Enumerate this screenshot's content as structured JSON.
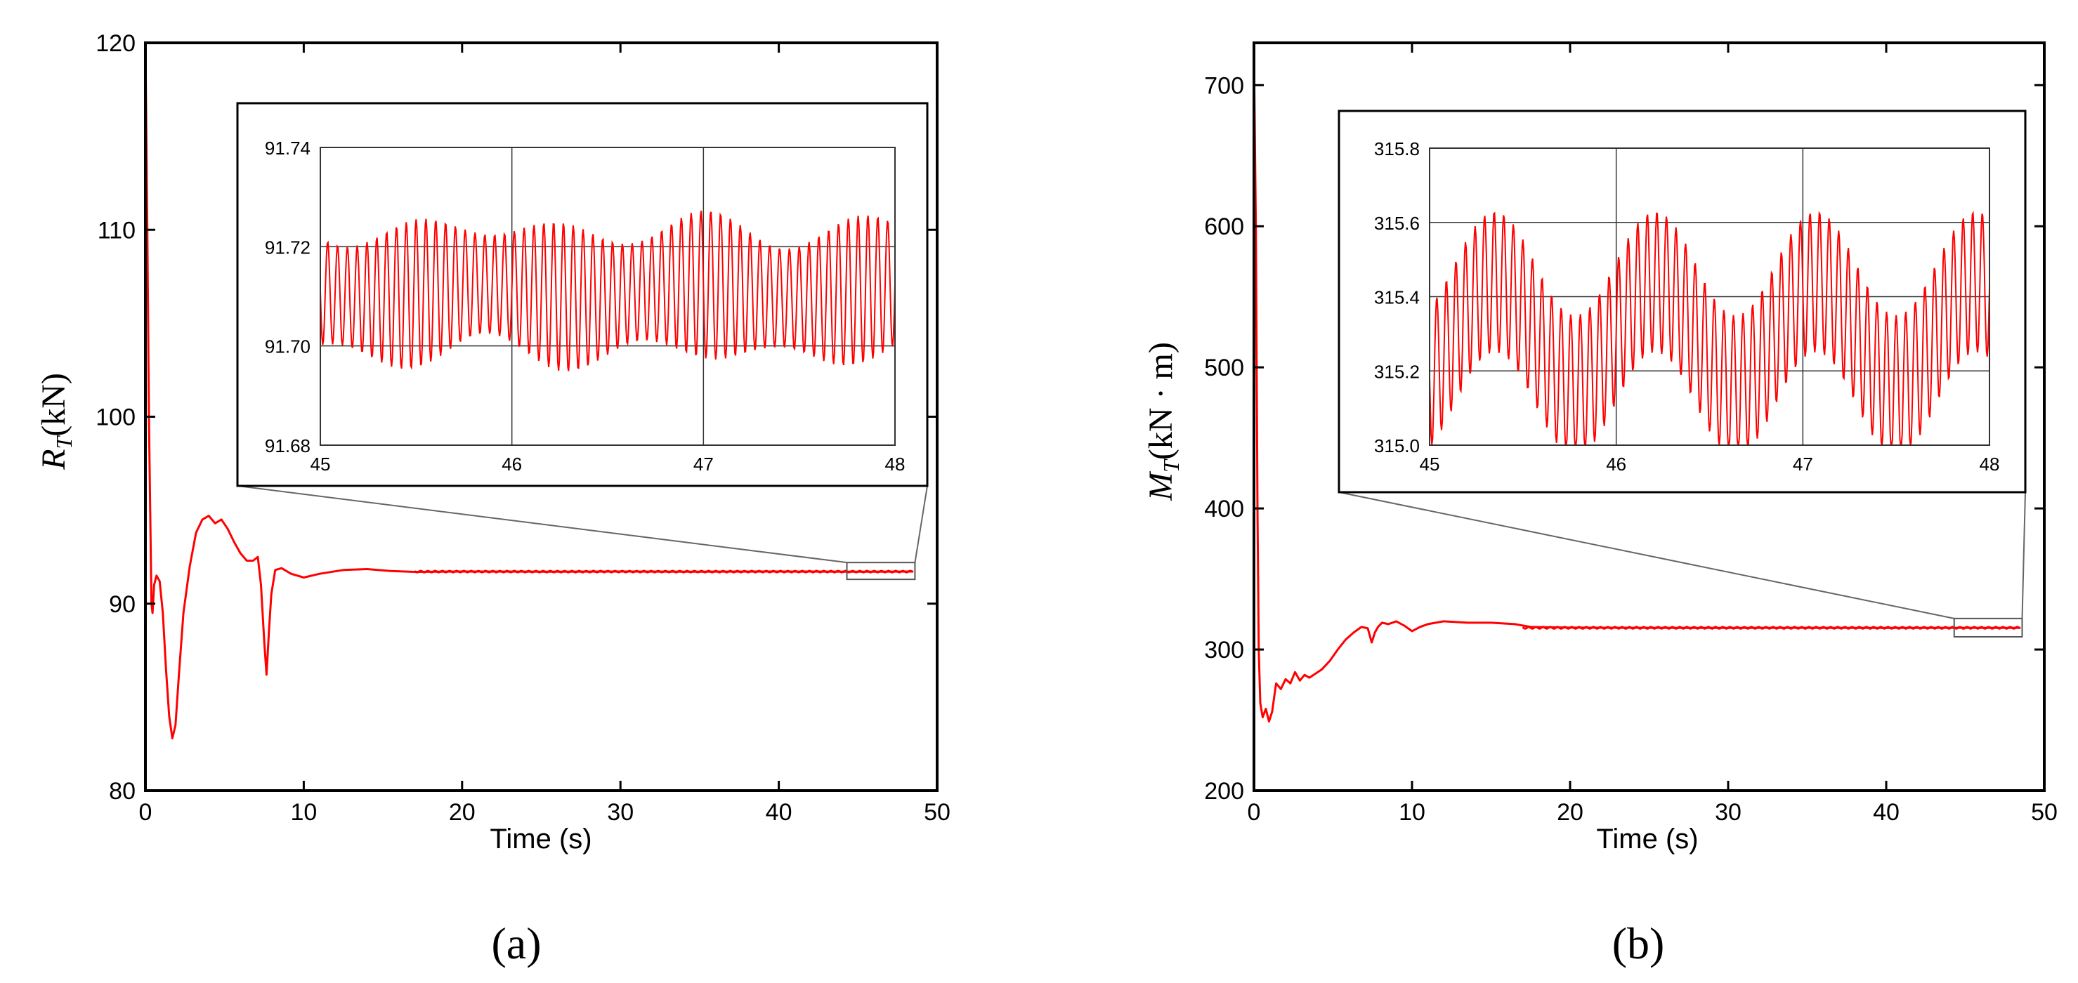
{
  "chart_data": [
    {
      "id": "a",
      "type": "line",
      "panel_label": "(a)",
      "title": "",
      "xlabel": "Time (s)",
      "ylabel_symbol": "R",
      "ylabel_subscript": "T",
      "ylabel_unit": "(kN)",
      "xlim": [
        0,
        50
      ],
      "ylim": [
        80,
        120
      ],
      "xticks": [
        0,
        10,
        20,
        30,
        40,
        50
      ],
      "yticks": [
        80,
        90,
        100,
        110,
        120
      ],
      "line_color": "#ff0000",
      "series": [
        {
          "name": "R_T",
          "x": [
            0.0,
            0.12,
            0.22,
            0.3,
            0.38,
            0.45,
            0.55,
            0.7,
            0.9,
            1.1,
            1.3,
            1.5,
            1.7,
            1.9,
            2.1,
            2.4,
            2.8,
            3.2,
            3.6,
            4.0,
            4.4,
            4.8,
            5.2,
            5.6,
            6.0,
            6.4,
            6.8,
            7.1,
            7.3,
            7.5,
            7.65,
            7.8,
            7.95,
            8.2,
            8.6,
            9.2,
            10.0,
            11.0,
            12.5,
            14.0,
            15.5,
            17.0,
            20,
            25,
            30,
            35,
            40,
            45,
            48.5
          ],
          "y": [
            120,
            110,
            100,
            95,
            90,
            89.5,
            91,
            91.5,
            91.2,
            89.5,
            86.5,
            84,
            82.8,
            83.5,
            86,
            89.5,
            92,
            93.8,
            94.5,
            94.7,
            94.3,
            94.5,
            94,
            93.3,
            92.7,
            92.3,
            92.3,
            92.5,
            91,
            88,
            86.2,
            88.5,
            90.5,
            91.8,
            91.9,
            91.6,
            91.4,
            91.6,
            91.8,
            91.85,
            91.75,
            91.7,
            91.72,
            91.71,
            91.72,
            91.71,
            91.72,
            91.71,
            91.72
          ]
        }
      ],
      "zoom_box": {
        "x": [
          44.3,
          48.6
        ],
        "y": [
          91.3,
          92.2
        ]
      },
      "inset": {
        "xlim": [
          45,
          48
        ],
        "ylim": [
          91.68,
          91.74
        ],
        "xticks": [
          45,
          46,
          47,
          48
        ],
        "yticks": [
          91.68,
          91.7,
          91.72,
          91.74
        ],
        "ytick_labels": [
          "91.68",
          "91.70",
          "91.72",
          "91.74"
        ],
        "xtick_labels": [
          "45",
          "46",
          "47",
          "48"
        ],
        "grid": true,
        "signal": {
          "mean": 91.711,
          "amplitude": 0.0125,
          "cycles_per_second": 19.5,
          "beat_amplitude": 0.0025,
          "beat_cycles_per_second": 1.3
        }
      }
    },
    {
      "id": "b",
      "type": "line",
      "panel_label": "(b)",
      "title": "",
      "xlabel": "Time (s)",
      "ylabel_symbol": "M",
      "ylabel_subscript": "T",
      "ylabel_unit": "(kN · m)",
      "xlim": [
        0,
        50
      ],
      "ylim": [
        200,
        730
      ],
      "xticks": [
        0,
        10,
        20,
        30,
        40,
        50
      ],
      "yticks": [
        200,
        300,
        400,
        500,
        600,
        700
      ],
      "line_color": "#ff0000",
      "series": [
        {
          "name": "M_T",
          "x": [
            0.0,
            0.12,
            0.22,
            0.3,
            0.4,
            0.55,
            0.75,
            0.95,
            1.15,
            1.4,
            1.7,
            2.0,
            2.3,
            2.6,
            2.9,
            3.2,
            3.5,
            3.9,
            4.3,
            4.8,
            5.3,
            5.8,
            6.3,
            6.8,
            7.2,
            7.45,
            7.65,
            7.85,
            8.1,
            8.5,
            9.0,
            9.5,
            10.0,
            10.5,
            11.0,
            12.0,
            13.5,
            15.0,
            16.5,
            17.5,
            20,
            25,
            30,
            35,
            40,
            45,
            48.5
          ],
          "y": [
            720,
            600,
            400,
            300,
            262,
            252,
            258,
            249,
            256,
            276,
            272,
            279,
            276,
            284,
            278,
            282,
            280,
            283,
            286,
            292,
            300,
            307,
            312,
            316,
            315,
            305,
            312,
            316,
            319,
            318,
            320,
            317,
            313,
            316,
            318,
            320,
            319,
            319,
            318,
            316,
            315.5,
            315.4,
            315.3,
            315.4,
            315.3,
            315.4,
            315.3
          ]
        }
      ],
      "zoom_box": {
        "x": [
          44.3,
          48.6
        ],
        "y": [
          309,
          322
        ]
      },
      "inset": {
        "xlim": [
          45,
          48
        ],
        "ylim": [
          315.0,
          315.8
        ],
        "xticks": [
          45,
          46,
          47,
          48
        ],
        "yticks": [
          315.0,
          315.2,
          315.4,
          315.6,
          315.8
        ],
        "ytick_labels": [
          "315.0",
          "315.2",
          "315.4",
          "315.6",
          "315.8"
        ],
        "xtick_labels": [
          "45",
          "46",
          "47",
          "48"
        ],
        "grid": true,
        "signal": {
          "mean": 315.3,
          "slow_amplitude": 0.14,
          "slow_period": 0.86,
          "slow_phase_time": 45.35,
          "fast_amplitude": 0.19,
          "cycles_per_second": 19.5
        }
      }
    }
  ]
}
